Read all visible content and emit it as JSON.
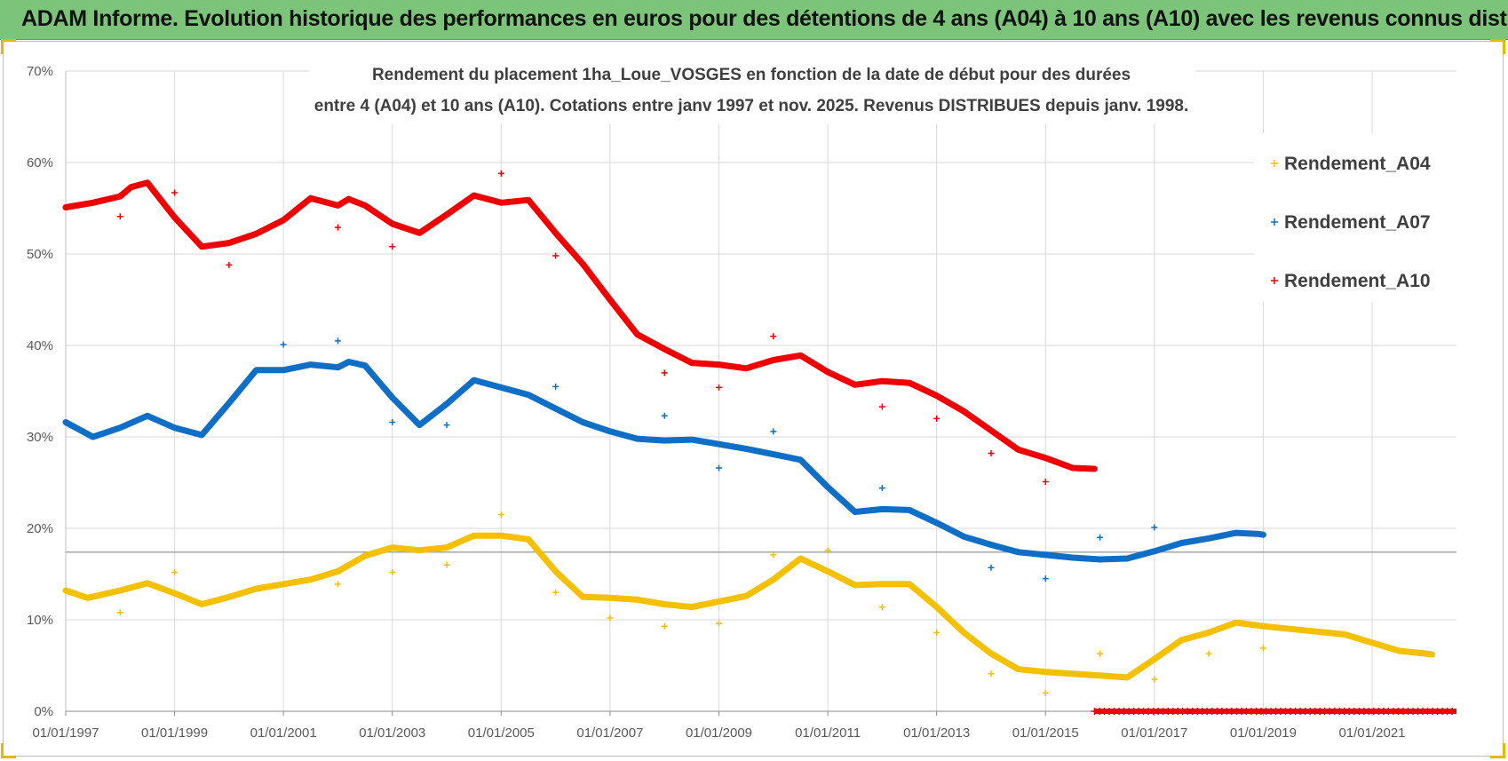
{
  "banner": {
    "title": "ADAM Informe. Evolution historique des performances en euros pour des détentions de 4 ans (A04) à 10 ans (A10) avec les revenus connus distribués"
  },
  "colors": {
    "a04": "#f5c000",
    "a07": "#0f6fc6",
    "a10": "#ee0000",
    "grid": "#d9d9d9",
    "banner": "#7cc47a"
  },
  "chart_data": {
    "type": "scatter",
    "title_line1": "Rendement du placement 1ha_Loue_VOSGES en fonction de la date de début pour des durées",
    "title_line2": "entre 4 (A04) et 10 ans (A10).  Cotations entre janv 1997 et nov. 2025. Revenus DISTRIBUES depuis janv. 1998.",
    "xlabel": "",
    "ylabel": "",
    "xlim": [
      1997.0,
      2022.55
    ],
    "ylim": [
      0,
      70
    ],
    "y_ticks": [
      0,
      10,
      20,
      30,
      40,
      50,
      60,
      70
    ],
    "y_tick_labels": [
      "0%",
      "10%",
      "20%",
      "30%",
      "40%",
      "50%",
      "60%",
      "70%"
    ],
    "x_ticks": [
      1997,
      1999,
      2001,
      2003,
      2005,
      2007,
      2009,
      2011,
      2013,
      2015,
      2017,
      2019,
      2021
    ],
    "x_tick_labels": [
      "01/01/1997",
      "01/01/1999",
      "01/01/2001",
      "01/01/2003",
      "01/01/2005",
      "01/01/2007",
      "01/01/2009",
      "01/01/2011",
      "01/01/2013",
      "01/01/2015",
      "01/01/2017",
      "01/01/2019",
      "01/01/2021"
    ],
    "reference_line_y": 17.4,
    "legend_position": "right",
    "series": [
      {
        "name": "Rendement_A04",
        "key": "a04",
        "curve": [
          [
            1997.0,
            13.2
          ],
          [
            1997.4,
            12.4
          ],
          [
            1998.0,
            13.2
          ],
          [
            1998.5,
            14.0
          ],
          [
            1999.0,
            12.9
          ],
          [
            1999.5,
            11.7
          ],
          [
            2000.0,
            12.5
          ],
          [
            2000.5,
            13.4
          ],
          [
            2001.0,
            13.9
          ],
          [
            2001.5,
            14.4
          ],
          [
            2002.0,
            15.3
          ],
          [
            2002.5,
            17.0
          ],
          [
            2003.0,
            17.9
          ],
          [
            2003.5,
            17.6
          ],
          [
            2004.0,
            17.9
          ],
          [
            2004.5,
            19.2
          ],
          [
            2005.0,
            19.2
          ],
          [
            2005.5,
            18.8
          ],
          [
            2006.0,
            15.3
          ],
          [
            2006.5,
            12.5
          ],
          [
            2007.0,
            12.4
          ],
          [
            2007.5,
            12.2
          ],
          [
            2008.0,
            11.7
          ],
          [
            2008.5,
            11.4
          ],
          [
            2009.0,
            12.0
          ],
          [
            2009.5,
            12.6
          ],
          [
            2010.0,
            14.4
          ],
          [
            2010.5,
            16.7
          ],
          [
            2011.0,
            15.3
          ],
          [
            2011.5,
            13.8
          ],
          [
            2012.0,
            13.9
          ],
          [
            2012.5,
            13.9
          ],
          [
            2013.0,
            11.4
          ],
          [
            2013.5,
            8.6
          ],
          [
            2014.0,
            6.3
          ],
          [
            2014.5,
            4.6
          ],
          [
            2015.0,
            4.3
          ],
          [
            2015.5,
            4.1
          ],
          [
            2016.0,
            3.9
          ],
          [
            2016.5,
            3.7
          ],
          [
            2017.0,
            5.7
          ],
          [
            2017.5,
            7.8
          ],
          [
            2018.0,
            8.6
          ],
          [
            2018.5,
            9.7
          ],
          [
            2019.0,
            9.3
          ],
          [
            2019.5,
            9.0
          ],
          [
            2020.0,
            8.7
          ],
          [
            2020.5,
            8.4
          ],
          [
            2021.0,
            7.5
          ],
          [
            2021.5,
            6.6
          ],
          [
            2022.0,
            6.3
          ],
          [
            2022.1,
            6.2
          ]
        ],
        "outliers": [
          [
            1998.0,
            10.8
          ],
          [
            1999.0,
            15.2
          ],
          [
            2002.0,
            13.9
          ],
          [
            2003.0,
            15.2
          ],
          [
            2004.0,
            16.0
          ],
          [
            2005.0,
            21.5
          ],
          [
            2006.0,
            13.0
          ],
          [
            2007.0,
            10.2
          ],
          [
            2008.0,
            9.3
          ],
          [
            2009.0,
            9.6
          ],
          [
            2010.0,
            17.1
          ],
          [
            2011.0,
            17.6
          ],
          [
            2012.0,
            11.4
          ],
          [
            2013.0,
            8.6
          ],
          [
            2014.0,
            4.1
          ],
          [
            2015.0,
            2.0
          ],
          [
            2016.0,
            6.3
          ],
          [
            2017.0,
            3.5
          ],
          [
            2018.0,
            6.3
          ],
          [
            2019.0,
            6.9
          ]
        ]
      },
      {
        "name": "Rendement_A07",
        "key": "a07",
        "curve": [
          [
            1997.0,
            31.6
          ],
          [
            1997.5,
            30.0
          ],
          [
            1998.0,
            31.0
          ],
          [
            1998.5,
            32.3
          ],
          [
            1999.0,
            31.0
          ],
          [
            1999.5,
            30.2
          ],
          [
            2000.0,
            33.7
          ],
          [
            2000.5,
            37.3
          ],
          [
            2001.0,
            37.3
          ],
          [
            2001.5,
            37.9
          ],
          [
            2002.0,
            37.6
          ],
          [
            2002.2,
            38.2
          ],
          [
            2002.5,
            37.8
          ],
          [
            2003.0,
            34.3
          ],
          [
            2003.5,
            31.3
          ],
          [
            2004.0,
            33.6
          ],
          [
            2004.5,
            36.2
          ],
          [
            2005.0,
            35.4
          ],
          [
            2005.5,
            34.6
          ],
          [
            2006.0,
            33.1
          ],
          [
            2006.5,
            31.6
          ],
          [
            2007.0,
            30.6
          ],
          [
            2007.5,
            29.8
          ],
          [
            2008.0,
            29.6
          ],
          [
            2008.5,
            29.7
          ],
          [
            2009.0,
            29.2
          ],
          [
            2009.5,
            28.7
          ],
          [
            2010.0,
            28.1
          ],
          [
            2010.5,
            27.5
          ],
          [
            2011.0,
            24.5
          ],
          [
            2011.5,
            21.8
          ],
          [
            2012.0,
            22.1
          ],
          [
            2012.5,
            22.0
          ],
          [
            2013.0,
            20.6
          ],
          [
            2013.5,
            19.1
          ],
          [
            2014.0,
            18.2
          ],
          [
            2014.5,
            17.4
          ],
          [
            2015.0,
            17.1
          ],
          [
            2015.5,
            16.8
          ],
          [
            2016.0,
            16.6
          ],
          [
            2016.5,
            16.7
          ],
          [
            2017.0,
            17.5
          ],
          [
            2017.5,
            18.4
          ],
          [
            2018.0,
            18.9
          ],
          [
            2018.5,
            19.5
          ],
          [
            2018.9,
            19.4
          ],
          [
            2019.0,
            19.3
          ]
        ],
        "outliers": [
          [
            2001.0,
            40.1
          ],
          [
            2002.0,
            40.5
          ],
          [
            2003.0,
            31.6
          ],
          [
            2004.0,
            31.3
          ],
          [
            2006.0,
            35.5
          ],
          [
            2008.0,
            32.3
          ],
          [
            2009.0,
            26.6
          ],
          [
            2010.0,
            30.6
          ],
          [
            2012.0,
            24.4
          ],
          [
            2014.0,
            15.7
          ],
          [
            2015.0,
            14.5
          ],
          [
            2016.0,
            19.0
          ],
          [
            2017.0,
            20.1
          ]
        ]
      },
      {
        "name": "Rendement_A10",
        "key": "a10",
        "curve": [
          [
            1997.0,
            55.1
          ],
          [
            1997.5,
            55.6
          ],
          [
            1998.0,
            56.3
          ],
          [
            1998.2,
            57.3
          ],
          [
            1998.5,
            57.8
          ],
          [
            1999.0,
            54.0
          ],
          [
            1999.5,
            50.8
          ],
          [
            2000.0,
            51.2
          ],
          [
            2000.5,
            52.2
          ],
          [
            2001.0,
            53.7
          ],
          [
            2001.5,
            56.1
          ],
          [
            2002.0,
            55.3
          ],
          [
            2002.2,
            56.0
          ],
          [
            2002.5,
            55.3
          ],
          [
            2003.0,
            53.3
          ],
          [
            2003.5,
            52.3
          ],
          [
            2004.0,
            54.3
          ],
          [
            2004.5,
            56.4
          ],
          [
            2005.0,
            55.6
          ],
          [
            2005.5,
            55.9
          ],
          [
            2006.0,
            52.3
          ],
          [
            2006.5,
            48.9
          ],
          [
            2007.0,
            45.0
          ],
          [
            2007.5,
            41.2
          ],
          [
            2008.0,
            39.6
          ],
          [
            2008.5,
            38.1
          ],
          [
            2009.0,
            37.9
          ],
          [
            2009.5,
            37.5
          ],
          [
            2010.0,
            38.4
          ],
          [
            2010.5,
            38.9
          ],
          [
            2011.0,
            37.1
          ],
          [
            2011.5,
            35.7
          ],
          [
            2012.0,
            36.1
          ],
          [
            2012.5,
            35.9
          ],
          [
            2013.0,
            34.5
          ],
          [
            2013.5,
            32.8
          ],
          [
            2014.0,
            30.7
          ],
          [
            2014.5,
            28.6
          ],
          [
            2015.0,
            27.7
          ],
          [
            2015.5,
            26.6
          ],
          [
            2015.9,
            26.5
          ]
        ],
        "outliers": [
          [
            1998.0,
            54.1
          ],
          [
            1999.0,
            56.7
          ],
          [
            2000.0,
            48.8
          ],
          [
            2002.0,
            52.9
          ],
          [
            2003.0,
            50.8
          ],
          [
            2005.0,
            58.8
          ],
          [
            2006.0,
            49.8
          ],
          [
            2008.0,
            37.0
          ],
          [
            2009.0,
            35.4
          ],
          [
            2010.0,
            41.0
          ],
          [
            2012.0,
            33.3
          ],
          [
            2013.0,
            32.0
          ],
          [
            2014.0,
            28.2
          ],
          [
            2015.0,
            25.1
          ]
        ],
        "baseline_range": [
          2015.9,
          2022.55
        ],
        "baseline_value": 0
      }
    ]
  }
}
